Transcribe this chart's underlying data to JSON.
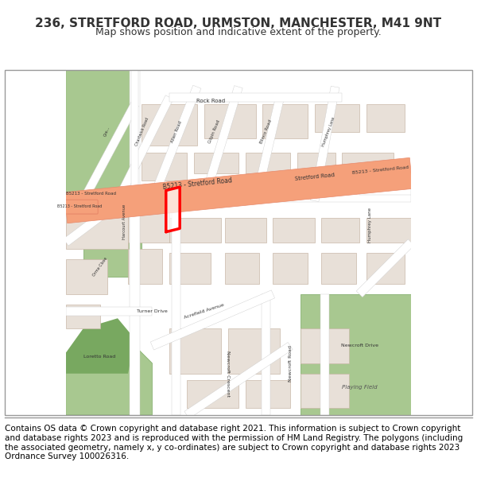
{
  "title": "236, STRETFORD ROAD, URMSTON, MANCHESTER, M41 9NT",
  "subtitle": "Map shows position and indicative extent of the property.",
  "copyright_text": "Contains OS data © Crown copyright and database right 2021. This information is subject to Crown copyright and database rights 2023 and is reproduced with the permission of HM Land Registry. The polygons (including the associated geometry, namely x, y co-ordinates) are subject to Crown copyright and database rights 2023 Ordnance Survey 100026316.",
  "bg_color": "#f5f0eb",
  "map_bg": "#f5f0eb",
  "road_color": "#f5a07a",
  "road_edge_color": "#e8896a",
  "minor_road_color": "#ffffff",
  "building_color": "#e8e0d8",
  "building_edge_color": "#c8b8a8",
  "green_color": "#a8c890",
  "green_dark": "#78a860",
  "water_color": "#90c8d8",
  "text_color": "#333333",
  "property_color": "#ff0000",
  "title_fontsize": 11,
  "subtitle_fontsize": 9,
  "copyright_fontsize": 7.5
}
